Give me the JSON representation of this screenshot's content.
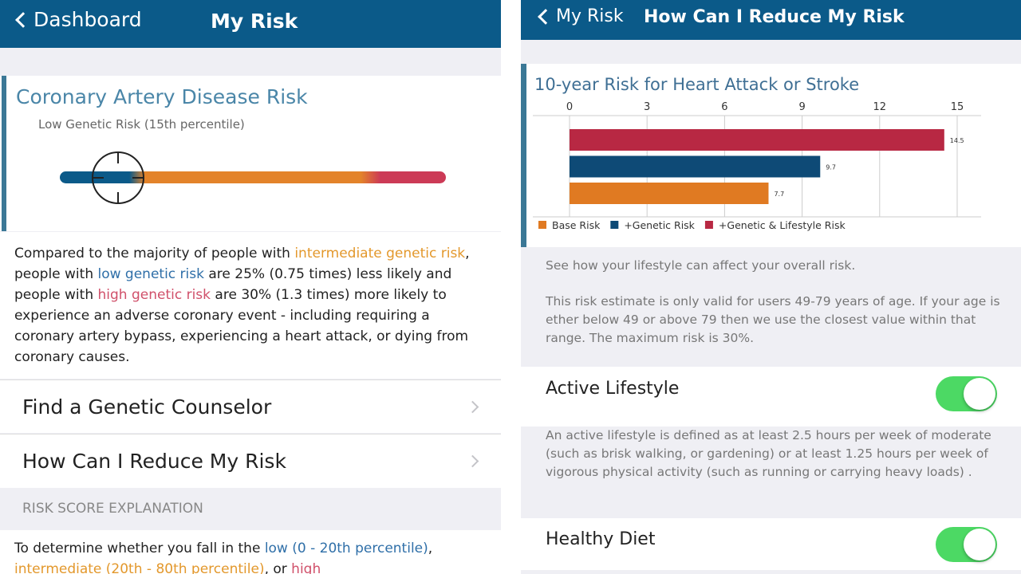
{
  "left": {
    "header": {
      "back_label": "Dashboard",
      "title": "My Risk"
    },
    "card": {
      "title": "Coronary Artery Disease Risk",
      "subtitle": "Low Genetic Risk (15th percentile)",
      "percentile": 15,
      "colors": {
        "low": "#0b5a89",
        "intermediate": "#e3832a",
        "high": "#cc3a56"
      }
    },
    "paragraph": {
      "p1": "Compared to the majority of people with ",
      "intermediate": "intermediate genetic risk",
      "p2": ", people with ",
      "low": "low genetic risk",
      "p3": " are 25% (0.75 times) less likely and people with ",
      "high": "high genetic risk",
      "p4": " are 30% (1.3 times) more likely to experience an adverse coronary event - including requiring a coronary artery bypass, experiencing a heart attack, or dying from coronary causes."
    },
    "rows": [
      {
        "label": "Find a Genetic Counselor"
      },
      {
        "label": "How Can I Reduce My Risk"
      }
    ],
    "section_header": "RISK SCORE EXPLANATION",
    "explanation": {
      "p1": "To determine whether you fall in the ",
      "low": "low (0 - 20th percentile)",
      "p2": ", ",
      "intermediate": "intermediate (20th - 80th percentile)",
      "p3": ", or ",
      "high": "high"
    }
  },
  "right": {
    "header": {
      "back_label": "My Risk",
      "title": "How Can I Reduce My Risk"
    },
    "intro": "See how your lifestyle can affect your overall risk.",
    "note": "This risk estimate is only valid for users 49-79 years of age. If your age is ether below 49 or above 79 then we use the closest value within that range. The maximum risk is 30%.",
    "settings": [
      {
        "label": "Active Lifestyle",
        "on": true,
        "description": "An active lifestyle is defined as at least 2.5 hours per week of moderate (such as brisk walking, or gardening) or at least 1.25 hours per week of vigorous physical activity (such as running or carrying heavy loads) ."
      },
      {
        "label": "Healthy Diet",
        "on": true
      }
    ]
  },
  "chart_data": {
    "type": "bar",
    "orientation": "horizontal",
    "title": "10-year Risk for Heart Attack or Stroke",
    "xlim": [
      0,
      15
    ],
    "ticks": [
      "0",
      "3",
      "6",
      "9",
      "12",
      "15"
    ],
    "grid": true,
    "legend": "bottom",
    "series": [
      {
        "name": "+Genetic & Lifestyle Risk",
        "value": 14.5,
        "label": "14.5",
        "color": "#b82843"
      },
      {
        "name": "+Genetic Risk",
        "value": 9.7,
        "label": "9.7",
        "color": "#0e4a76"
      },
      {
        "name": "Base Risk",
        "value": 7.7,
        "label": "7.7",
        "color": "#e07a22"
      }
    ],
    "legend_order": [
      2,
      1,
      0
    ]
  }
}
